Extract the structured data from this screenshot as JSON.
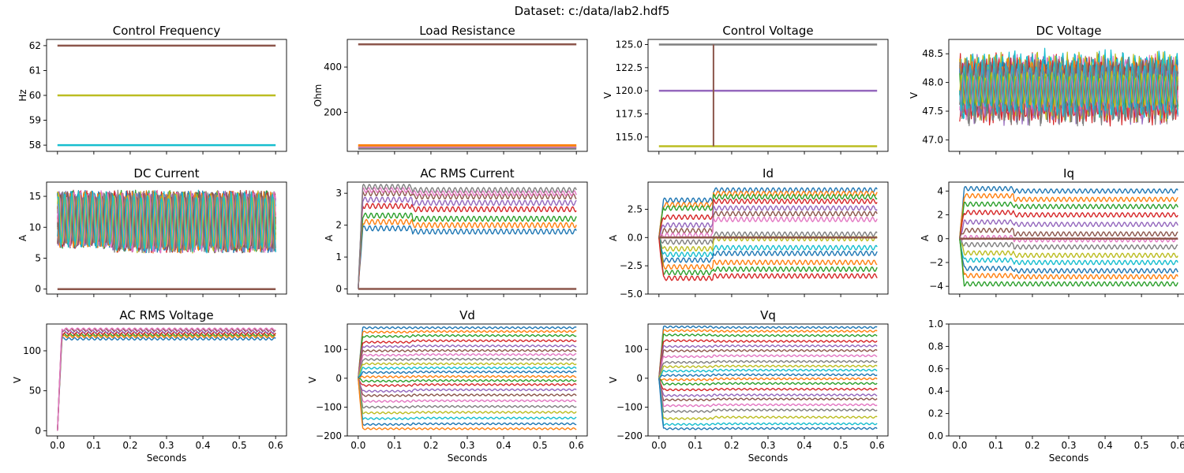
{
  "suptitle": "Dataset: c:/data/lab2.hdf5",
  "xlabel": "Seconds",
  "colors": [
    "#1f77b4",
    "#ff7f0e",
    "#2ca02c",
    "#d62728",
    "#9467bd",
    "#8c564b",
    "#e377c2",
    "#7f7f7f",
    "#bcbd22",
    "#17becf"
  ],
  "chart_data": [
    {
      "type": "line",
      "title": "Control Frequency",
      "ylabel": "Hz",
      "xlabel": "",
      "xlim": [
        -0.03,
        0.63
      ],
      "ylim": [
        57.75,
        62.25
      ],
      "xticks": [
        0.0,
        0.1,
        0.2,
        0.3,
        0.4,
        0.5,
        0.6
      ],
      "xtick_labels_shown": false,
      "yticks": [
        58,
        59,
        60,
        61,
        62
      ],
      "ytick_labels": [
        "58",
        "59",
        "60",
        "61",
        "62"
      ],
      "kind": "constant",
      "series": [
        {
          "color_index": 9,
          "y": 58
        },
        {
          "color_index": 8,
          "y": 60
        },
        {
          "color_index": 5,
          "y": 62
        }
      ]
    },
    {
      "type": "line",
      "title": "Load Resistance",
      "ylabel": "Ohm",
      "xlabel": "",
      "xlim": [
        -0.03,
        0.63
      ],
      "ylim": [
        28,
        522
      ],
      "xticks": [
        0.0,
        0.1,
        0.2,
        0.3,
        0.4,
        0.5,
        0.6
      ],
      "xtick_labels_shown": false,
      "yticks": [
        200,
        400
      ],
      "ytick_labels": [
        "200",
        "400"
      ],
      "kind": "constant",
      "series": [
        {
          "color_index": 5,
          "y": 500
        },
        {
          "color_index": 8,
          "y": 50
        },
        {
          "color_index": 6,
          "y": 45
        },
        {
          "color_index": 7,
          "y": 40
        },
        {
          "color_index": 1,
          "y": 55
        }
      ]
    },
    {
      "type": "line",
      "title": "Control Voltage",
      "ylabel": "V",
      "xlabel": "",
      "xlim": [
        -0.03,
        0.63
      ],
      "ylim": [
        113.45,
        125.55
      ],
      "xticks": [
        0.0,
        0.1,
        0.2,
        0.3,
        0.4,
        0.5,
        0.6
      ],
      "xtick_labels_shown": false,
      "yticks": [
        115.0,
        117.5,
        120.0,
        122.5,
        125.0
      ],
      "ytick_labels": [
        "115.0",
        "117.5",
        "120.0",
        "122.5",
        "125.0"
      ],
      "kind": "constant",
      "series": [
        {
          "color_index": 8,
          "y": 114
        },
        {
          "color_index": 4,
          "y": 120
        },
        {
          "color_index": 7,
          "y": 125
        }
      ],
      "vertical_step": {
        "x": 0.15,
        "y_from": 114,
        "y_to": 125,
        "color_index": 5
      }
    },
    {
      "type": "line",
      "title": "DC Voltage",
      "ylabel": "V",
      "xlabel": "",
      "xlim": [
        -0.03,
        0.63
      ],
      "ylim": [
        46.8,
        48.75
      ],
      "xticks": [
        0.0,
        0.1,
        0.2,
        0.3,
        0.4,
        0.5,
        0.6
      ],
      "xtick_labels_shown": false,
      "yticks": [
        47.0,
        47.5,
        48.0,
        48.5
      ],
      "ytick_labels": [
        "47.0",
        "47.5",
        "48.0",
        "48.5"
      ],
      "kind": "oscillating",
      "center": 47.9,
      "series_count": 20,
      "amplitude_range": [
        0.3,
        0.7
      ],
      "step_at": 0.15
    },
    {
      "type": "line",
      "title": "DC Current",
      "ylabel": "A",
      "xlabel": "",
      "xlim": [
        -0.03,
        0.63
      ],
      "ylim": [
        -0.8,
        17.3
      ],
      "xticks": [
        0.0,
        0.1,
        0.2,
        0.3,
        0.4,
        0.5,
        0.6
      ],
      "xtick_labels_shown": false,
      "yticks": [
        0,
        5,
        10,
        15
      ],
      "ytick_labels": [
        "0",
        "5",
        "10",
        "15"
      ],
      "kind": "band",
      "series_count": 20,
      "before_step": {
        "low": 6.5,
        "high": 16.0
      },
      "after_step": {
        "low": 5.8,
        "high": 16.0
      },
      "step_at": 0.15,
      "baseline": 0
    },
    {
      "type": "line",
      "title": "AC RMS Current",
      "ylabel": "A",
      "xlabel": "",
      "xlim": [
        -0.03,
        0.63
      ],
      "ylim": [
        -0.16,
        3.35
      ],
      "xticks": [
        0.0,
        0.1,
        0.2,
        0.3,
        0.4,
        0.5,
        0.6
      ],
      "xtick_labels_shown": false,
      "yticks": [
        0,
        1,
        2,
        3
      ],
      "ytick_labels": [
        "0",
        "1",
        "2",
        "3"
      ],
      "kind": "levels",
      "rise_until": 0.012,
      "step_at": 0.15,
      "ripple": 0.08,
      "levels_before": [
        1.9,
        2.1,
        2.3,
        2.6,
        2.8,
        3.0,
        3.1,
        3.2
      ],
      "levels_after": [
        1.8,
        2.0,
        2.2,
        2.5,
        2.7,
        2.9,
        3.0,
        3.1
      ],
      "baseline": 0
    },
    {
      "type": "line",
      "title": "Id",
      "ylabel": "A",
      "xlabel": "",
      "xlim": [
        -0.03,
        0.63
      ],
      "ylim": [
        -5.0,
        4.9
      ],
      "xticks": [
        0.0,
        0.1,
        0.2,
        0.3,
        0.4,
        0.5,
        0.6
      ],
      "xtick_labels_shown": false,
      "yticks": [
        -5.0,
        -2.5,
        0.0,
        2.5
      ],
      "ytick_labels": [
        "−5.0",
        "−2.5",
        "0.0",
        "2.5"
      ],
      "kind": "levels",
      "rise_until": 0.012,
      "step_at": 0.15,
      "ripple": 0.2,
      "levels_before": [
        3.3,
        2.9,
        2.6,
        1.8,
        1.1,
        0.6,
        0.2,
        -0.4,
        -1.0,
        -1.5,
        -2.0,
        -2.6,
        -3.1,
        -3.6
      ],
      "levels_after": [
        4.2,
        3.9,
        3.6,
        3.2,
        2.6,
        2.1,
        1.6,
        0.3,
        -0.1,
        -0.9,
        -1.4,
        -2.2,
        -2.8,
        -3.4
      ],
      "baseline": 0
    },
    {
      "type": "line",
      "title": "Iq",
      "ylabel": "A",
      "xlabel": "",
      "xlim": [
        -0.03,
        0.63
      ],
      "ylim": [
        -4.65,
        4.75
      ],
      "xticks": [
        0.0,
        0.1,
        0.2,
        0.3,
        0.4,
        0.5,
        0.6
      ],
      "xtick_labels_shown": false,
      "yticks": [
        -4,
        -2,
        0,
        2,
        4
      ],
      "ytick_labels": [
        "−4",
        "−2",
        "0",
        "2",
        "4"
      ],
      "kind": "levels",
      "rise_until": 0.012,
      "step_at": 0.15,
      "ripple": 0.18,
      "levels_before": [
        4.2,
        3.6,
        2.9,
        2.2,
        1.4,
        0.7,
        0.1,
        -0.5,
        -1.2,
        -1.8,
        -2.5,
        -3.1,
        -3.8
      ],
      "levels_after": [
        4.0,
        3.3,
        2.7,
        2.0,
        1.2,
        0.4,
        -0.1,
        -0.7,
        -1.4,
        -2.0,
        -2.7,
        -3.2,
        -3.8
      ],
      "baseline": 0
    },
    {
      "type": "line",
      "title": "AC RMS Voltage",
      "ylabel": "V",
      "xlabel": "Seconds",
      "xlim": [
        -0.03,
        0.63
      ],
      "ylim": [
        -6.5,
        133.5
      ],
      "xticks": [
        0.0,
        0.1,
        0.2,
        0.3,
        0.4,
        0.5,
        0.6
      ],
      "xtick_labels_shown": true,
      "xtick_labels": [
        "0.0",
        "0.1",
        "0.2",
        "0.3",
        "0.4",
        "0.5",
        "0.6"
      ],
      "yticks": [
        0,
        50,
        100
      ],
      "ytick_labels": [
        "0",
        "50",
        "100"
      ],
      "kind": "levels",
      "rise_until": 0.012,
      "step_at": 0.15,
      "ripple": 1.5,
      "levels_before": [
        115,
        118,
        120,
        122,
        124,
        126,
        127
      ],
      "levels_after": [
        115,
        118,
        120,
        122,
        124,
        126,
        127
      ],
      "baseline": null
    },
    {
      "type": "line",
      "title": "Vd",
      "ylabel": "V",
      "xlabel": "Seconds",
      "xlim": [
        -0.03,
        0.63
      ],
      "ylim": [
        -200,
        188
      ],
      "xticks": [
        0.0,
        0.1,
        0.2,
        0.3,
        0.4,
        0.5,
        0.6
      ],
      "xtick_labels_shown": true,
      "xtick_labels": [
        "0.0",
        "0.1",
        "0.2",
        "0.3",
        "0.4",
        "0.5",
        "0.6"
      ],
      "yticks": [
        -200,
        -100,
        0,
        100
      ],
      "ytick_labels": [
        "−200",
        "−100",
        "0",
        "100"
      ],
      "kind": "levels",
      "rise_until": 0.012,
      "step_at": 0.15,
      "ripple": 3,
      "levels_before": [
        175,
        160,
        145,
        125,
        110,
        95,
        80,
        65,
        50,
        35,
        20,
        5,
        -10,
        -25,
        -45,
        -60,
        -80,
        -100,
        -120,
        -140,
        -160,
        -175
      ],
      "levels_after": [
        175,
        162,
        148,
        130,
        112,
        96,
        82,
        66,
        50,
        36,
        22,
        6,
        -8,
        -22,
        -40,
        -58,
        -78,
        -98,
        -118,
        -138,
        -158,
        -175
      ],
      "baseline": null
    },
    {
      "type": "line",
      "title": "Vq",
      "ylabel": "V",
      "xlabel": "Seconds",
      "xlim": [
        -0.03,
        0.63
      ],
      "ylim": [
        -200,
        188
      ],
      "xticks": [
        0.0,
        0.1,
        0.2,
        0.3,
        0.4,
        0.5,
        0.6
      ],
      "xtick_labels_shown": true,
      "xtick_labels": [
        "0.0",
        "0.1",
        "0.2",
        "0.3",
        "0.4",
        "0.5",
        "0.6"
      ],
      "yticks": [
        -200,
        -100,
        0,
        100
      ],
      "ytick_labels": [
        "−200",
        "−100",
        "0",
        "100"
      ],
      "kind": "levels",
      "rise_until": 0.012,
      "step_at": 0.15,
      "ripple": 3,
      "levels_before": [
        178,
        165,
        150,
        130,
        110,
        95,
        75,
        55,
        40,
        25,
        10,
        -5,
        -20,
        -40,
        -60,
        -75,
        -95,
        -115,
        -140,
        -160,
        -175
      ],
      "levels_after": [
        176,
        163,
        148,
        128,
        112,
        96,
        78,
        58,
        42,
        28,
        12,
        -2,
        -18,
        -38,
        -58,
        -72,
        -92,
        -110,
        -135,
        -158,
        -174
      ],
      "baseline": null
    },
    {
      "type": "line",
      "title": "",
      "ylabel": "",
      "xlabel": "Seconds",
      "xlim": [
        -0.03,
        0.63
      ],
      "ylim": [
        0.0,
        1.0
      ],
      "xticks": [
        0.0,
        0.1,
        0.2,
        0.3,
        0.4,
        0.5,
        0.6
      ],
      "xtick_labels_shown": true,
      "xtick_labels": [
        "0.0",
        "0.1",
        "0.2",
        "0.3",
        "0.4",
        "0.5",
        "0.6"
      ],
      "yticks": [
        0.0,
        0.2,
        0.4,
        0.6,
        0.8,
        1.0
      ],
      "ytick_labels": [
        "0.0",
        "0.2",
        "0.4",
        "0.6",
        "0.8",
        "1.0"
      ],
      "kind": "empty"
    }
  ]
}
